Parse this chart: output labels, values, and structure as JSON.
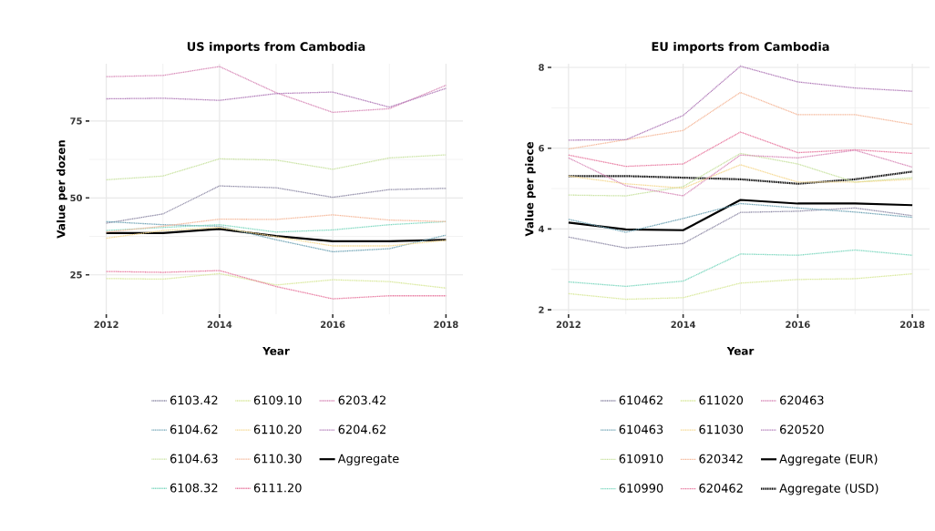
{
  "chart_data": [
    {
      "type": "line",
      "title": "US imports from Cambodia",
      "xlabel": "Year",
      "ylabel": "Value per dozen",
      "x": [
        2012,
        2013,
        2014,
        2015,
        2016,
        2017,
        2018
      ],
      "xlim": [
        2011.7,
        2018.3
      ],
      "xticks": [
        2012,
        2014,
        2016,
        2018
      ],
      "ylim": [
        12.2,
        93.6
      ],
      "yticks": [
        25,
        50,
        75
      ],
      "grid": true,
      "legend": "bottom",
      "series": [
        {
          "name": "6103.42",
          "color": "#8e8aa6",
          "line_style": "dotted",
          "values": [
            41.8,
            44.8,
            53.9,
            53.3,
            50.2,
            52.7,
            53.1
          ]
        },
        {
          "name": "6104.62",
          "color": "#6fa3b5",
          "line_style": "dotted",
          "values": [
            42.3,
            41.3,
            40.8,
            36.4,
            32.5,
            33.5,
            37.9
          ]
        },
        {
          "name": "6104.63",
          "color": "#c8e2a0",
          "line_style": "dotted",
          "values": [
            55.9,
            57.1,
            62.7,
            62.3,
            59.3,
            63,
            64
          ]
        },
        {
          "name": "6108.32",
          "color": "#7fd8c0",
          "line_style": "dotted",
          "values": [
            39.4,
            40.4,
            41.3,
            38.9,
            39.6,
            41.3,
            42.3
          ]
        },
        {
          "name": "6109.10",
          "color": "#d8e89a",
          "line_style": "dotted",
          "values": [
            23.8,
            23.6,
            25.4,
            21.7,
            23.4,
            22.8,
            20.7
          ]
        },
        {
          "name": "6110.20",
          "color": "#f5d890",
          "line_style": "dotted",
          "values": [
            36.9,
            39.4,
            40.4,
            37.4,
            34.4,
            34.4,
            36.2
          ]
        },
        {
          "name": "6110.30",
          "color": "#f5b89a",
          "line_style": "dotted",
          "values": [
            38.9,
            40.8,
            43.1,
            43,
            44.5,
            42.8,
            42.3
          ]
        },
        {
          "name": "6111.20",
          "color": "#e87aa0",
          "line_style": "dotted",
          "values": [
            26.1,
            25.8,
            26.4,
            21.2,
            17.2,
            18.2,
            18.2
          ]
        },
        {
          "name": "6203.42",
          "color": "#d88ab8",
          "line_style": "dotted",
          "values": [
            89.4,
            89.8,
            92.7,
            84.2,
            77.8,
            79,
            86.6
          ]
        },
        {
          "name": "6204.62",
          "color": "#b07ab8",
          "line_style": "dotted",
          "values": [
            82.2,
            82.4,
            81.7,
            83.9,
            84.4,
            79.5,
            85.6
          ]
        },
        {
          "name": "Aggregate",
          "color": "#000000",
          "line_style": "solid",
          "values": [
            38.6,
            38.6,
            39.9,
            37.6,
            35.9,
            35.9,
            36.4
          ]
        }
      ]
    },
    {
      "type": "line",
      "title": "EU imports from Cambodia",
      "xlabel": "Year",
      "ylabel": "Value per piece",
      "x": [
        2012,
        2013,
        2014,
        2015,
        2016,
        2017,
        2018
      ],
      "xlim": [
        2011.7,
        2018.3
      ],
      "xticks": [
        2012,
        2014,
        2016,
        2018
      ],
      "ylim": [
        1.89,
        8.09
      ],
      "yticks": [
        2,
        4,
        6,
        8
      ],
      "grid": true,
      "legend": "bottom",
      "series": [
        {
          "name": "610462",
          "color": "#8e8aa6",
          "line_style": "dotted",
          "values": [
            3.8,
            3.53,
            3.64,
            4.41,
            4.44,
            4.52,
            4.33
          ]
        },
        {
          "name": "610463",
          "color": "#6fa3b5",
          "line_style": "dotted",
          "values": [
            4.24,
            3.92,
            4.26,
            4.63,
            4.52,
            4.42,
            4.29
          ]
        },
        {
          "name": "610910",
          "color": "#c8e2a0",
          "line_style": "dotted",
          "values": [
            4.84,
            4.82,
            5.05,
            5.87,
            5.61,
            5.16,
            5.27
          ]
        },
        {
          "name": "610990",
          "color": "#7fd8c0",
          "line_style": "dotted",
          "values": [
            2.69,
            2.58,
            2.71,
            3.38,
            3.35,
            3.48,
            3.35
          ]
        },
        {
          "name": "611020",
          "color": "#d8e89a",
          "line_style": "dotted",
          "values": [
            2.4,
            2.26,
            2.3,
            2.66,
            2.75,
            2.77,
            2.89
          ]
        },
        {
          "name": "611030",
          "color": "#f5d890",
          "line_style": "dotted",
          "values": [
            5.31,
            5.12,
            5.01,
            5.59,
            5.16,
            5.16,
            5.23
          ]
        },
        {
          "name": "620342",
          "color": "#f5b89a",
          "line_style": "dotted",
          "values": [
            5.98,
            6.21,
            6.44,
            7.38,
            6.83,
            6.83,
            6.59
          ]
        },
        {
          "name": "620462",
          "color": "#e87aa0",
          "line_style": "dotted",
          "values": [
            5.83,
            5.55,
            5.61,
            6.4,
            5.89,
            5.96,
            5.87
          ]
        },
        {
          "name": "620463",
          "color": "#d88ab8",
          "line_style": "dotted",
          "values": [
            5.76,
            5.07,
            4.82,
            5.83,
            5.76,
            5.95,
            5.53
          ]
        },
        {
          "name": "620520",
          "color": "#b07ab8",
          "line_style": "dotted",
          "values": [
            6.2,
            6.21,
            6.81,
            8.03,
            7.64,
            7.49,
            7.41
          ]
        },
        {
          "name": "Aggregate (EUR)",
          "color": "#000000",
          "line_style": "solid",
          "values": [
            4.16,
            3.99,
            3.97,
            4.72,
            4.63,
            4.63,
            4.59
          ]
        },
        {
          "name": "Aggregate (USD)",
          "color": "#000000",
          "line_style": "dotted",
          "values": [
            5.31,
            5.31,
            5.27,
            5.23,
            5.12,
            5.23,
            5.42
          ]
        }
      ]
    }
  ]
}
